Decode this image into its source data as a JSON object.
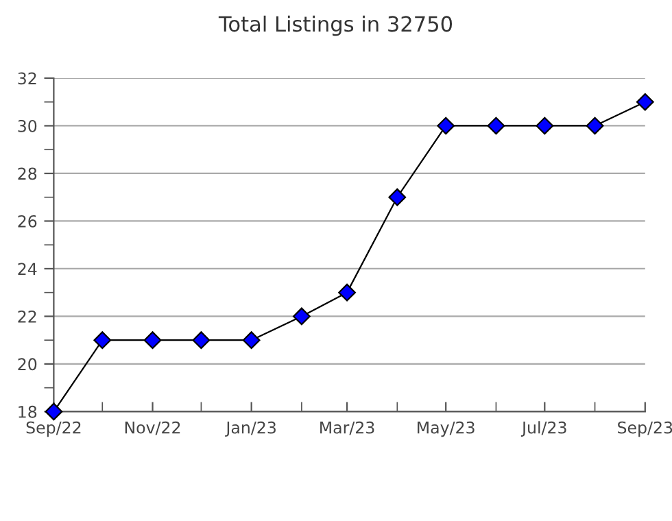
{
  "chart_data": {
    "type": "line",
    "title": "Total Listings in 32750",
    "x": [
      "2022-09",
      "2022-10",
      "2022-11",
      "2022-12",
      "2023-01",
      "2023-02",
      "2023-03",
      "2023-04",
      "2023-05",
      "2023-06",
      "2023-07",
      "2023-08",
      "2023-09"
    ],
    "series": [
      {
        "color": "#0000ff",
        "values": [
          18,
          21,
          21,
          21,
          21,
          22,
          23,
          27,
          30,
          30,
          30,
          30,
          31
        ]
      }
    ],
    "xlim": [
      "2022-09",
      "2023-09"
    ],
    "xticks": [
      {
        "value": "2022-09",
        "label": "Sep/22"
      },
      {
        "value": "2022-10",
        "label": null
      },
      {
        "value": "2022-11",
        "label": "Nov/22"
      },
      {
        "value": "2022-12",
        "label": null
      },
      {
        "value": "2023-01",
        "label": "Jan/23"
      },
      {
        "value": "2023-02",
        "label": null
      },
      {
        "value": "2023-03",
        "label": "Mar/23"
      },
      {
        "value": "2023-04",
        "label": null
      },
      {
        "value": "2023-05",
        "label": "May/23"
      },
      {
        "value": "2023-06",
        "label": null
      },
      {
        "value": "2023-07",
        "label": "Jul/23"
      },
      {
        "value": "2023-08",
        "label": null
      },
      {
        "value": "2023-09",
        "label": "Sep/23"
      }
    ],
    "ylim": [
      18,
      32
    ],
    "yticks": [
      18,
      {
        "value": 19,
        "label": null
      },
      20,
      {
        "value": 21,
        "label": null
      },
      22,
      {
        "value": 23,
        "label": null
      },
      24,
      {
        "value": 25,
        "label": null
      },
      26,
      {
        "value": 27,
        "label": null
      },
      28,
      {
        "value": 29,
        "label": null
      },
      30,
      {
        "value": 31,
        "label": null
      },
      32
    ],
    "grid": "y",
    "marker": "diamond",
    "line_style": "solid",
    "legend": false
  }
}
